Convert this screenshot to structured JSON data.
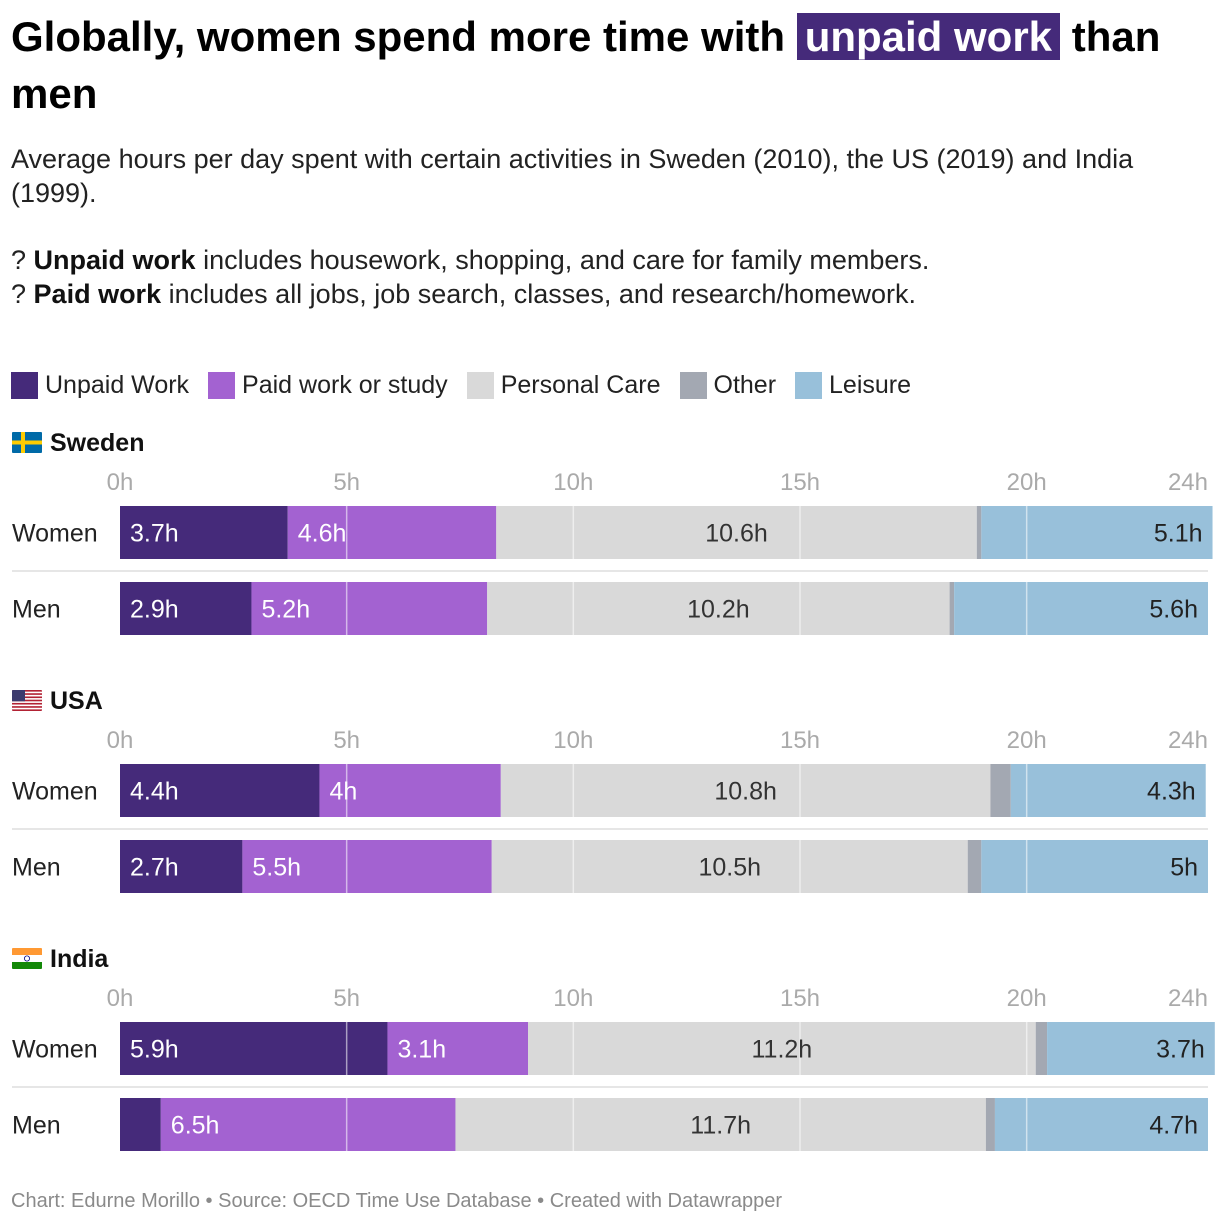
{
  "title": {
    "before": "Globally, women spend more time with",
    "highlight": "unpaid work",
    "after": "than men"
  },
  "subtitle": "Average hours per day spent with certain activities in Sweden (2010), the US (2019) and India (1999).",
  "notes": [
    {
      "bullet": "?",
      "term": "Unpaid work",
      "text": "includes housework, shopping, and care for family members."
    },
    {
      "bullet": "?",
      "term": "Paid work",
      "text": "includes all jobs, job search, classes, and research/homework."
    }
  ],
  "legend": [
    {
      "label": "Unpaid Work",
      "color": "#452a7a"
    },
    {
      "label": "Paid work or study",
      "color": "#a362d1"
    },
    {
      "label": "Personal Care",
      "color": "#d9d9d9"
    },
    {
      "label": "Other",
      "color": "#a3a8b2"
    },
    {
      "label": "Leisure",
      "color": "#98c0da"
    }
  ],
  "chart_data": {
    "type": "bar",
    "orientation": "horizontal",
    "stacked": true,
    "axis": {
      "min": 0,
      "max": 24,
      "ticks": [
        0,
        5,
        10,
        15,
        20,
        24
      ],
      "tick_labels": [
        "0h",
        "5h",
        "10h",
        "15h",
        "20h",
        "24h"
      ],
      "unit": "h"
    },
    "series": [
      "Unpaid Work",
      "Paid work or study",
      "Personal Care",
      "Other",
      "Leisure"
    ],
    "groups": [
      {
        "country": "Sweden",
        "flag": "sweden",
        "rows": [
          {
            "label": "Women",
            "values": [
              3.7,
              4.6,
              10.6,
              0.1,
              5.1
            ],
            "labels": [
              "3.7h",
              "4.6h",
              "10.6h",
              "",
              "5.1h"
            ]
          },
          {
            "label": "Men",
            "values": [
              2.9,
              5.2,
              10.2,
              0.1,
              5.6
            ],
            "labels": [
              "2.9h",
              "5.2h",
              "10.2h",
              "",
              "5.6h"
            ]
          }
        ]
      },
      {
        "country": "USA",
        "flag": "usa",
        "rows": [
          {
            "label": "Women",
            "values": [
              4.4,
              4.0,
              10.8,
              0.45,
              4.3
            ],
            "labels": [
              "4.4h",
              "4h",
              "10.8h",
              "",
              "4.3h"
            ]
          },
          {
            "label": "Men",
            "values": [
              2.7,
              5.5,
              10.5,
              0.3,
              5.0
            ],
            "labels": [
              "2.7h",
              "5.5h",
              "10.5h",
              "",
              "5h"
            ]
          }
        ]
      },
      {
        "country": "India",
        "flag": "india",
        "rows": [
          {
            "label": "Women",
            "values": [
              5.9,
              3.1,
              11.2,
              0.25,
              3.7
            ],
            "labels": [
              "5.9h",
              "3.1h",
              "11.2h",
              "",
              "3.7h"
            ]
          },
          {
            "label": "Men",
            "values": [
              0.9,
              6.5,
              11.7,
              0.2,
              4.7
            ],
            "labels": [
              "",
              "6.5h",
              "11.7h",
              "",
              "4.7h"
            ]
          }
        ]
      }
    ]
  },
  "footer": {
    "chart": "Chart: Edurne Morillo",
    "source": "Source: OECD Time Use Database",
    "created": "Created with Datawrapper",
    "separator": "•"
  }
}
